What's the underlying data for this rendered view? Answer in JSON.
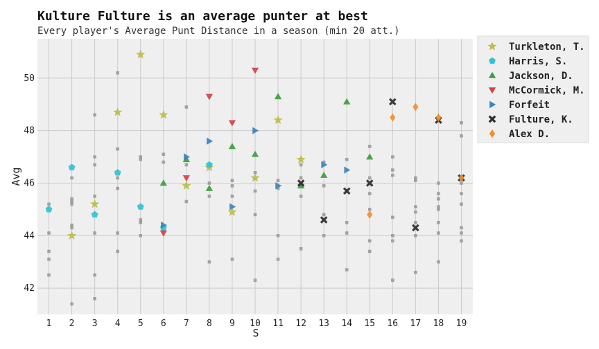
{
  "chart_data": {
    "type": "scatter",
    "title": "Kulture Fulture is an average punter at best",
    "subtitle": "Every player's Average Punt Distance in a season (min 20 att.)",
    "xlabel": "S",
    "ylabel": "Avg",
    "xlim": [
      0.5,
      19.5
    ],
    "ylim": [
      41.0,
      51.5
    ],
    "xticks": [
      1,
      2,
      3,
      4,
      5,
      6,
      7,
      8,
      9,
      10,
      11,
      12,
      13,
      14,
      15,
      16,
      17,
      18,
      19
    ],
    "yticks": [
      42,
      44,
      46,
      48,
      50
    ],
    "grid": true,
    "legend_position": "outside-right-top",
    "background_points": {
      "color": "#9a9a9a",
      "points": [
        [
          1,
          45.2
        ],
        [
          1,
          44.1
        ],
        [
          1,
          43.4
        ],
        [
          1,
          43.1
        ],
        [
          1,
          42.5
        ],
        [
          2,
          46.2
        ],
        [
          2,
          45.4
        ],
        [
          2,
          45.3
        ],
        [
          2,
          45.2
        ],
        [
          2,
          44.4
        ],
        [
          2,
          44.3
        ],
        [
          2,
          41.4
        ],
        [
          3,
          48.6
        ],
        [
          3,
          47.0
        ],
        [
          3,
          46.7
        ],
        [
          3,
          45.5
        ],
        [
          3,
          44.1
        ],
        [
          3,
          42.5
        ],
        [
          3,
          41.6
        ],
        [
          4,
          50.2
        ],
        [
          4,
          47.3
        ],
        [
          4,
          46.2
        ],
        [
          4,
          45.8
        ],
        [
          4,
          44.1
        ],
        [
          4,
          43.4
        ],
        [
          5,
          47.0
        ],
        [
          5,
          46.9
        ],
        [
          5,
          44.6
        ],
        [
          5,
          44.5
        ],
        [
          5,
          44.0
        ],
        [
          6,
          47.1
        ],
        [
          6,
          46.8
        ],
        [
          6,
          44.2
        ],
        [
          7,
          48.9
        ],
        [
          7,
          46.7
        ],
        [
          7,
          45.3
        ],
        [
          8,
          46.0
        ],
        [
          8,
          45.5
        ],
        [
          8,
          43.0
        ],
        [
          9,
          46.1
        ],
        [
          9,
          45.9
        ],
        [
          9,
          45.5
        ],
        [
          9,
          43.1
        ],
        [
          10,
          46.4
        ],
        [
          10,
          45.7
        ],
        [
          10,
          44.8
        ],
        [
          10,
          42.3
        ],
        [
          11,
          46.1
        ],
        [
          11,
          45.8
        ],
        [
          11,
          44.0
        ],
        [
          11,
          43.1
        ],
        [
          12,
          46.7
        ],
        [
          12,
          46.2
        ],
        [
          12,
          45.5
        ],
        [
          12,
          43.5
        ],
        [
          13,
          46.8
        ],
        [
          13,
          45.9
        ],
        [
          13,
          44.8
        ],
        [
          13,
          44.0
        ],
        [
          14,
          46.9
        ],
        [
          14,
          44.5
        ],
        [
          14,
          44.1
        ],
        [
          14,
          42.7
        ],
        [
          15,
          47.4
        ],
        [
          15,
          46.2
        ],
        [
          15,
          45.6
        ],
        [
          15,
          45.0
        ],
        [
          15,
          43.8
        ],
        [
          15,
          43.4
        ],
        [
          16,
          47.0
        ],
        [
          16,
          46.5
        ],
        [
          16,
          46.3
        ],
        [
          16,
          44.7
        ],
        [
          16,
          44.0
        ],
        [
          16,
          43.8
        ],
        [
          16,
          42.3
        ],
        [
          17,
          46.2
        ],
        [
          17,
          46.1
        ],
        [
          17,
          45.1
        ],
        [
          17,
          44.9
        ],
        [
          17,
          44.5
        ],
        [
          17,
          44.0
        ],
        [
          17,
          42.6
        ],
        [
          18,
          46.0
        ],
        [
          18,
          45.6
        ],
        [
          18,
          45.4
        ],
        [
          18,
          45.1
        ],
        [
          18,
          45.0
        ],
        [
          18,
          44.5
        ],
        [
          18,
          44.1
        ],
        [
          18,
          43.0
        ],
        [
          19,
          48.3
        ],
        [
          19,
          47.8
        ],
        [
          19,
          46.0
        ],
        [
          19,
          45.6
        ],
        [
          19,
          45.2
        ],
        [
          19,
          44.3
        ],
        [
          19,
          44.1
        ],
        [
          19,
          43.8
        ]
      ]
    },
    "series": [
      {
        "name": "Turkleton, T.",
        "marker": "star",
        "color": "#bcbd4a",
        "points": [
          [
            2,
            44.0
          ],
          [
            3,
            45.2
          ],
          [
            4,
            48.7
          ],
          [
            5,
            50.9
          ],
          [
            6,
            48.6
          ],
          [
            7,
            45.9
          ],
          [
            8,
            46.6
          ],
          [
            9,
            44.9
          ],
          [
            10,
            46.2
          ],
          [
            11,
            48.4
          ],
          [
            12,
            46.9
          ]
        ]
      },
      {
        "name": "Harris, S.",
        "marker": "pentagon",
        "color": "#2ec4d4",
        "points": [
          [
            1,
            45.0
          ],
          [
            2,
            46.6
          ],
          [
            3,
            44.8
          ],
          [
            4,
            46.4
          ],
          [
            5,
            45.1
          ],
          [
            6,
            44.3
          ],
          [
            8,
            46.7
          ]
        ]
      },
      {
        "name": "Jackson, D.",
        "marker": "triangle-up",
        "color": "#3d9e3d",
        "points": [
          [
            6,
            46.0
          ],
          [
            7,
            46.9
          ],
          [
            8,
            45.8
          ],
          [
            9,
            47.4
          ],
          [
            10,
            47.1
          ],
          [
            11,
            49.3
          ],
          [
            12,
            45.9
          ],
          [
            13,
            46.3
          ],
          [
            14,
            49.1
          ],
          [
            15,
            47.0
          ]
        ]
      },
      {
        "name": "McCormick, M.",
        "marker": "triangle-down",
        "color": "#d14343",
        "points": [
          [
            6,
            44.1
          ],
          [
            7,
            46.2
          ],
          [
            8,
            49.3
          ],
          [
            9,
            48.3
          ],
          [
            10,
            50.3
          ]
        ]
      },
      {
        "name": "Forfeit",
        "marker": "triangle-right",
        "color": "#3a84bf",
        "points": [
          [
            6,
            44.4
          ],
          [
            7,
            47.0
          ],
          [
            8,
            47.6
          ],
          [
            9,
            45.1
          ],
          [
            10,
            48.0
          ],
          [
            11,
            45.9
          ],
          [
            13,
            46.7
          ],
          [
            14,
            46.5
          ]
        ]
      },
      {
        "name": "Fulture, K.",
        "marker": "x",
        "color": "#2b2b2b",
        "points": [
          [
            12,
            46.0
          ],
          [
            13,
            44.6
          ],
          [
            14,
            45.7
          ],
          [
            15,
            46.0
          ],
          [
            16,
            49.1
          ],
          [
            17,
            44.3
          ],
          [
            18,
            48.4
          ],
          [
            19,
            46.2
          ]
        ]
      },
      {
        "name": "Alex D.",
        "marker": "diamond",
        "color": "#f28e2b",
        "points": [
          [
            15,
            44.8
          ],
          [
            16,
            48.5
          ],
          [
            17,
            48.9
          ],
          [
            18,
            48.5
          ],
          [
            19,
            46.2
          ]
        ]
      }
    ]
  }
}
